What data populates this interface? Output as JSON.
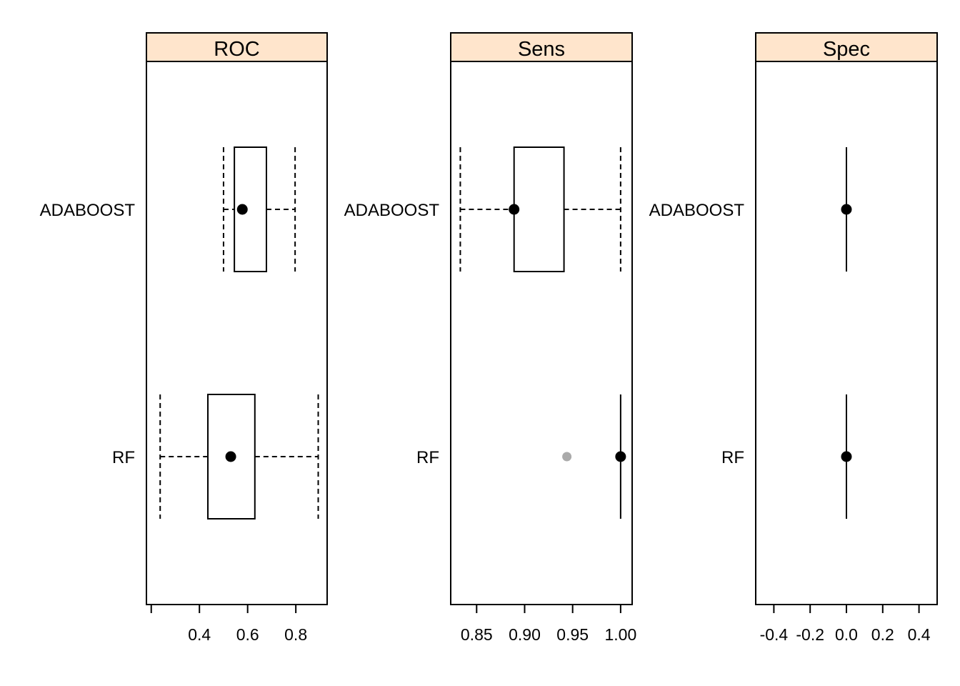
{
  "chart_data": [
    {
      "type": "box",
      "title": "ROC",
      "strip_color": "#FFE5CC",
      "categories": [
        "ADABOOST",
        "RF"
      ],
      "xlim": [
        0.18,
        0.93
      ],
      "ticks": [
        {
          "value": 0.2,
          "label": ""
        },
        {
          "value": 0.4,
          "label": "0.4"
        },
        {
          "value": 0.6,
          "label": "0.6"
        },
        {
          "value": 0.8,
          "label": "0.8"
        }
      ],
      "boxes": [
        {
          "name": "ADABOOST",
          "min": 0.5,
          "q1": 0.545,
          "median": 0.578,
          "q3": 0.678,
          "max": 0.797,
          "outliers": []
        },
        {
          "name": "RF",
          "min": 0.237,
          "q1": 0.435,
          "median": 0.53,
          "q3": 0.63,
          "max": 0.893,
          "outliers": []
        }
      ]
    },
    {
      "type": "box",
      "title": "Sens",
      "strip_color": "#FFE5CC",
      "categories": [
        "ADABOOST",
        "RF"
      ],
      "xlim": [
        0.823,
        1.012
      ],
      "ticks": [
        {
          "value": 0.85,
          "label": "0.85"
        },
        {
          "value": 0.9,
          "label": "0.90"
        },
        {
          "value": 0.95,
          "label": "0.95"
        },
        {
          "value": 1.0,
          "label": "1.00"
        }
      ],
      "boxes": [
        {
          "name": "ADABOOST",
          "min": 0.833,
          "q1": 0.889,
          "median": 0.889,
          "q3": 0.941,
          "max": 1.0,
          "outliers": []
        },
        {
          "name": "RF",
          "min": 1.0,
          "q1": 1.0,
          "median": 1.0,
          "q3": 1.0,
          "max": 1.0,
          "outliers": [
            0.944
          ]
        }
      ]
    },
    {
      "type": "box",
      "title": "Spec",
      "strip_color": "#FFE5CC",
      "categories": [
        "ADABOOST",
        "RF"
      ],
      "xlim": [
        -0.5,
        0.5
      ],
      "ticks": [
        {
          "value": -0.4,
          "label": "-0.4"
        },
        {
          "value": -0.2,
          "label": "-0.2"
        },
        {
          "value": 0.0,
          "label": "0.0"
        },
        {
          "value": 0.2,
          "label": "0.2"
        },
        {
          "value": 0.4,
          "label": "0.4"
        }
      ],
      "boxes": [
        {
          "name": "ADABOOST",
          "min": 0,
          "q1": 0,
          "median": 0,
          "q3": 0,
          "max": 0,
          "outliers": []
        },
        {
          "name": "RF",
          "min": 0,
          "q1": 0,
          "median": 0,
          "q3": 0,
          "max": 0,
          "outliers": []
        }
      ]
    }
  ]
}
